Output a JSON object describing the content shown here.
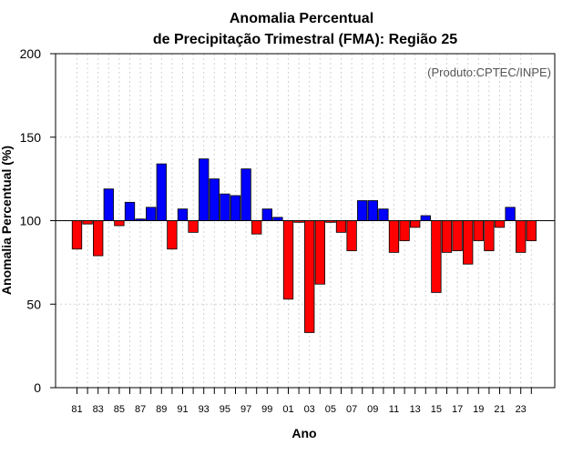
{
  "chart_data": {
    "type": "bar",
    "title_line1": "Anomalia Percentual",
    "title_line2": "de Precipitação Trimestral (FMA): Região 25",
    "xlabel": "Ano",
    "ylabel": "Anomalia Percentual (%)",
    "credit": "(Produto:CPTEC/INPE)",
    "ylim": [
      0,
      200
    ],
    "baseline": 100,
    "yticks": [
      "0",
      "50",
      "100",
      "150",
      "200"
    ],
    "xtick_labels": [
      "81",
      "83",
      "85",
      "87",
      "89",
      "91",
      "93",
      "95",
      "97",
      "99",
      "01",
      "03",
      "05",
      "07",
      "09",
      "11",
      "13",
      "15",
      "17",
      "19",
      "21",
      "23"
    ],
    "categories": [
      "1981",
      "1982",
      "1983",
      "1984",
      "1985",
      "1986",
      "1987",
      "1988",
      "1989",
      "1990",
      "1991",
      "1992",
      "1993",
      "1994",
      "1995",
      "1996",
      "1997",
      "1998",
      "1999",
      "2000",
      "2001",
      "2002",
      "2003",
      "2004",
      "2005",
      "2006",
      "2007",
      "2008",
      "2009",
      "2010",
      "2011",
      "2012",
      "2013",
      "2014",
      "2015",
      "2016",
      "2017",
      "2018",
      "2019",
      "2020",
      "2021",
      "2022",
      "2023",
      "2024"
    ],
    "values": [
      83,
      98,
      79,
      119,
      97,
      111,
      101,
      108,
      134,
      83,
      107,
      93,
      137,
      125,
      116,
      115,
      131,
      92,
      107,
      102,
      53,
      99,
      33,
      62,
      99,
      93,
      82,
      112,
      112,
      107,
      81,
      88,
      96,
      103,
      57,
      81,
      82,
      74,
      88,
      82,
      96,
      108,
      81,
      88
    ],
    "colors": {
      "above": "#0000ff",
      "below": "#ff0000",
      "stroke": "#000000",
      "grid": "#d3d3d3"
    }
  }
}
